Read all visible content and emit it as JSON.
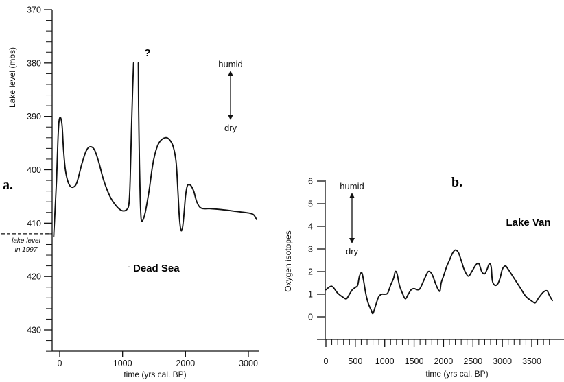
{
  "chart_data": [
    {
      "panel_label": "a.",
      "type": "line",
      "title": "Dead Sea",
      "xlabel": "time (yrs cal. BP)",
      "ylabel": "Lake level (mbs)",
      "xlim": [
        -100,
        3150
      ],
      "ylim": [
        370,
        434
      ],
      "y_inverted": true,
      "x_ticks": [
        0,
        1000,
        2000,
        3000
      ],
      "y_ticks": [
        370,
        380,
        390,
        400,
        410,
        420,
        430
      ],
      "x_tick_labels": [
        "0",
        "1000",
        "2000",
        "3000"
      ],
      "y_tick_labels": [
        "370",
        "380",
        "390",
        "400",
        "410",
        "420",
        "430"
      ],
      "reference_line": {
        "y": 412,
        "label_line1": "lake level",
        "label_line2": "in 1997"
      },
      "question_mark": "?",
      "arrow_top_label": "humid",
      "arrow_bottom_label": "dry",
      "series": [
        {
          "segments": [
            [
              [
                -95,
                412.5
              ],
              [
                -75,
                408
              ],
              [
                -50,
                402
              ],
              [
                -30,
                395
              ],
              [
                -15,
                391.5
              ],
              [
                0,
                390.3
              ],
              [
                20,
                390.4
              ],
              [
                40,
                392
              ],
              [
                60,
                396
              ],
              [
                90,
                400
              ],
              [
                140,
                402.5
              ],
              [
                200,
                403.3
              ],
              [
                270,
                402.5
              ],
              [
                350,
                399
              ],
              [
                420,
                396.5
              ],
              [
                480,
                395.7
              ],
              [
                550,
                396.2
              ],
              [
                620,
                398.5
              ],
              [
                700,
                402
              ],
              [
                800,
                405
              ],
              [
                900,
                406.8
              ],
              [
                980,
                407.6
              ],
              [
                1050,
                407.6
              ],
              [
                1100,
                406.5
              ],
              [
                1120,
                402
              ],
              [
                1140,
                393
              ],
              [
                1160,
                385
              ],
              [
                1175,
                380
              ]
            ],
            [
              [
                1250,
                380
              ],
              [
                1255,
                388
              ],
              [
                1265,
                397
              ],
              [
                1280,
                405
              ],
              [
                1295,
                409.2
              ],
              [
                1320,
                409.5
              ],
              [
                1360,
                408
              ],
              [
                1420,
                404
              ],
              [
                1480,
                399
              ],
              [
                1540,
                396
              ],
              [
                1600,
                394.6
              ],
              [
                1680,
                394
              ],
              [
                1740,
                394.3
              ],
              [
                1800,
                395.5
              ],
              [
                1850,
                398.5
              ],
              [
                1880,
                404
              ],
              [
                1900,
                408.5
              ],
              [
                1925,
                411.2
              ],
              [
                1950,
                411
              ],
              [
                1975,
                408.5
              ],
              [
                2000,
                405
              ],
              [
                2030,
                403
              ],
              [
                2080,
                402.9
              ],
              [
                2130,
                404
              ],
              [
                2180,
                406
              ],
              [
                2250,
                407.2
              ],
              [
                2400,
                407.3
              ],
              [
                2600,
                407.5
              ],
              [
                2800,
                407.8
              ],
              [
                3000,
                408.1
              ],
              [
                3080,
                408.4
              ],
              [
                3130,
                409.3
              ]
            ]
          ]
        }
      ]
    },
    {
      "panel_label": "b.",
      "type": "line",
      "title": "Lake Van",
      "xlabel": "time (yrs cal. BP)",
      "ylabel": "Oxygen isotopes",
      "xlim": [
        0,
        3850
      ],
      "ylim": [
        -1,
        6
      ],
      "x_ticks": [
        0,
        500,
        1000,
        1500,
        2000,
        2500,
        3000,
        3500
      ],
      "y_ticks": [
        0,
        1,
        2,
        3,
        4,
        5,
        6
      ],
      "x_tick_labels": [
        "0",
        "500",
        "1000",
        "1500",
        "2000",
        "2500",
        "3000",
        "3500"
      ],
      "y_tick_labels": [
        "0",
        "1",
        "2",
        "3",
        "4",
        "5",
        "6"
      ],
      "arrow_top_label": "humid",
      "arrow_bottom_label": "dry",
      "series": [
        {
          "segments": [
            [
              [
                0,
                1.2
              ],
              [
                100,
                1.35
              ],
              [
                200,
                1.05
              ],
              [
                300,
                0.85
              ],
              [
                350,
                0.8
              ],
              [
                400,
                1.0
              ],
              [
                450,
                1.2
              ],
              [
                500,
                1.3
              ],
              [
                540,
                1.4
              ],
              [
                570,
                1.8
              ],
              [
                610,
                1.95
              ],
              [
                640,
                1.6
              ],
              [
                680,
                1.0
              ],
              [
                720,
                0.6
              ],
              [
                770,
                0.3
              ],
              [
                800,
                0.15
              ],
              [
                850,
                0.55
              ],
              [
                900,
                0.9
              ],
              [
                950,
                1.0
              ],
              [
                1000,
                1.0
              ],
              [
                1050,
                1.05
              ],
              [
                1100,
                1.4
              ],
              [
                1150,
                1.7
              ],
              [
                1180,
                2.0
              ],
              [
                1210,
                1.9
              ],
              [
                1250,
                1.4
              ],
              [
                1300,
                1.05
              ],
              [
                1350,
                0.8
              ],
              [
                1400,
                1.0
              ],
              [
                1450,
                1.2
              ],
              [
                1500,
                1.25
              ],
              [
                1550,
                1.2
              ],
              [
                1600,
                1.25
              ],
              [
                1680,
                1.7
              ],
              [
                1740,
                2.0
              ],
              [
                1800,
                1.9
              ],
              [
                1860,
                1.5
              ],
              [
                1910,
                1.2
              ],
              [
                1940,
                1.15
              ],
              [
                1960,
                1.5
              ],
              [
                2000,
                1.8
              ],
              [
                2050,
                2.2
              ],
              [
                2100,
                2.5
              ],
              [
                2150,
                2.8
              ],
              [
                2200,
                2.95
              ],
              [
                2250,
                2.85
              ],
              [
                2300,
                2.5
              ],
              [
                2350,
                2.1
              ],
              [
                2420,
                1.8
              ],
              [
                2480,
                2.0
              ],
              [
                2550,
                2.3
              ],
              [
                2600,
                2.35
              ],
              [
                2650,
                2.0
              ],
              [
                2700,
                1.9
              ],
              [
                2740,
                2.1
              ],
              [
                2780,
                2.35
              ],
              [
                2810,
                2.2
              ],
              [
                2830,
                1.6
              ],
              [
                2870,
                1.4
              ],
              [
                2920,
                1.45
              ],
              [
                2960,
                1.7
              ],
              [
                3000,
                2.1
              ],
              [
                3050,
                2.25
              ],
              [
                3100,
                2.1
              ],
              [
                3200,
                1.7
              ],
              [
                3300,
                1.3
              ],
              [
                3400,
                0.9
              ],
              [
                3500,
                0.7
              ],
              [
                3560,
                0.62
              ],
              [
                3620,
                0.85
              ],
              [
                3700,
                1.1
              ],
              [
                3760,
                1.15
              ],
              [
                3800,
                0.95
              ],
              [
                3850,
                0.72
              ]
            ]
          ]
        }
      ]
    }
  ]
}
